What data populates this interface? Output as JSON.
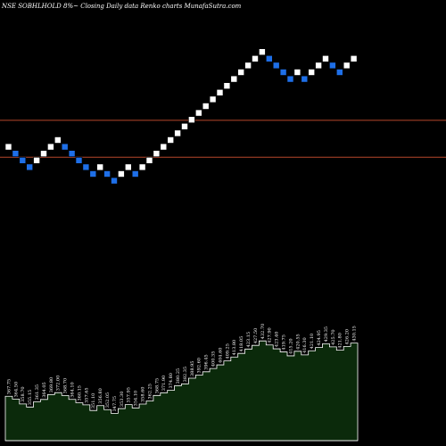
{
  "header": {
    "title": "NSE SOBHLHOLD 8%~  Closing Daily data  Renko  charts MunafaSutra.com"
  },
  "chart_data": {
    "type": "renko",
    "title": "NSE SOBHLHOLD 8%~  Closing Daily data  Renko  charts MunafaSutra.com",
    "colors": {
      "up_brick": "#ffffff",
      "down_brick": "#1e6fe8",
      "reference_line": "#b5462a",
      "volume_fill": "#0b2a0b",
      "volume_edge": "#ffffff",
      "background": "#000000"
    },
    "reference_lines": [
      318.2,
      303.5
    ],
    "bricks": [
      {
        "dir": "up",
        "top": 308.9,
        "price": "367.75"
      },
      {
        "dir": "down",
        "top": 306.2,
        "price": "364.50"
      },
      {
        "dir": "down",
        "top": 303.5,
        "price": "358.70"
      },
      {
        "dir": "down",
        "top": 300.8,
        "price": "355.15"
      },
      {
        "dir": "up",
        "top": 303.5,
        "price": "361.35"
      },
      {
        "dir": "up",
        "top": 306.2,
        "price": "364.05"
      },
      {
        "dir": "up",
        "top": 308.9,
        "price": "369.80"
      },
      {
        "dir": "up",
        "top": 311.6,
        "price": "372.00"
      },
      {
        "dir": "down",
        "top": 308.9,
        "price": "368.70"
      },
      {
        "dir": "down",
        "top": 306.2,
        "price": "364.10"
      },
      {
        "dir": "down",
        "top": 303.5,
        "price": "360.15"
      },
      {
        "dir": "down",
        "top": 300.8,
        "price": "357.65"
      },
      {
        "dir": "down",
        "top": 298.1,
        "price": "351.10"
      },
      {
        "dir": "up",
        "top": 300.8,
        "price": "356.80"
      },
      {
        "dir": "down",
        "top": 298.1,
        "price": "352.05"
      },
      {
        "dir": "down",
        "top": 295.4,
        "price": "347.75"
      },
      {
        "dir": "up",
        "top": 298.1,
        "price": "353.30"
      },
      {
        "dir": "up",
        "top": 300.8,
        "price": "357.95"
      },
      {
        "dir": "down",
        "top": 298.1,
        "price": "354.10"
      },
      {
        "dir": "up",
        "top": 300.8,
        "price": "358.60"
      },
      {
        "dir": "up",
        "top": 303.5,
        "price": "362.25"
      },
      {
        "dir": "up",
        "top": 306.2,
        "price": "368.75"
      },
      {
        "dir": "up",
        "top": 308.9,
        "price": "371.90"
      },
      {
        "dir": "up",
        "top": 311.6,
        "price": "374.80"
      },
      {
        "dir": "up",
        "top": 314.3,
        "price": "380.25"
      },
      {
        "dir": "up",
        "top": 317.0,
        "price": "382.35"
      },
      {
        "dir": "up",
        "top": 319.7,
        "price": "388.95"
      },
      {
        "dir": "up",
        "top": 322.4,
        "price": "392.60"
      },
      {
        "dir": "up",
        "top": 325.1,
        "price": "396.45"
      },
      {
        "dir": "up",
        "top": 327.8,
        "price": "400.35"
      },
      {
        "dir": "up",
        "top": 330.5,
        "price": "404.60"
      },
      {
        "dir": "up",
        "top": 333.2,
        "price": "409.25"
      },
      {
        "dir": "up",
        "top": 335.9,
        "price": "413.80"
      },
      {
        "dir": "up",
        "top": 338.6,
        "price": "418.05"
      },
      {
        "dir": "up",
        "top": 341.3,
        "price": "423.15"
      },
      {
        "dir": "up",
        "top": 344.0,
        "price": "427.50"
      },
      {
        "dir": "up",
        "top": 346.7,
        "price": "432.70"
      },
      {
        "dir": "down",
        "top": 344.0,
        "price": "427.90"
      },
      {
        "dir": "down",
        "top": 341.3,
        "price": "423.40"
      },
      {
        "dir": "down",
        "top": 338.6,
        "price": "419.75"
      },
      {
        "dir": "down",
        "top": 335.9,
        "price": "415.20"
      },
      {
        "dir": "up",
        "top": 338.6,
        "price": "420.55"
      },
      {
        "dir": "down",
        "top": 335.9,
        "price": "416.30"
      },
      {
        "dir": "up",
        "top": 338.6,
        "price": "421.10"
      },
      {
        "dir": "up",
        "top": 341.3,
        "price": "424.95"
      },
      {
        "dir": "up",
        "top": 344.0,
        "price": "429.35"
      },
      {
        "dir": "down",
        "top": 341.3,
        "price": "425.70"
      },
      {
        "dir": "down",
        "top": 338.6,
        "price": "421.80"
      },
      {
        "dir": "up",
        "top": 341.3,
        "price": "426.20"
      },
      {
        "dir": "up",
        "top": 344.0,
        "price": "430.15"
      }
    ]
  }
}
